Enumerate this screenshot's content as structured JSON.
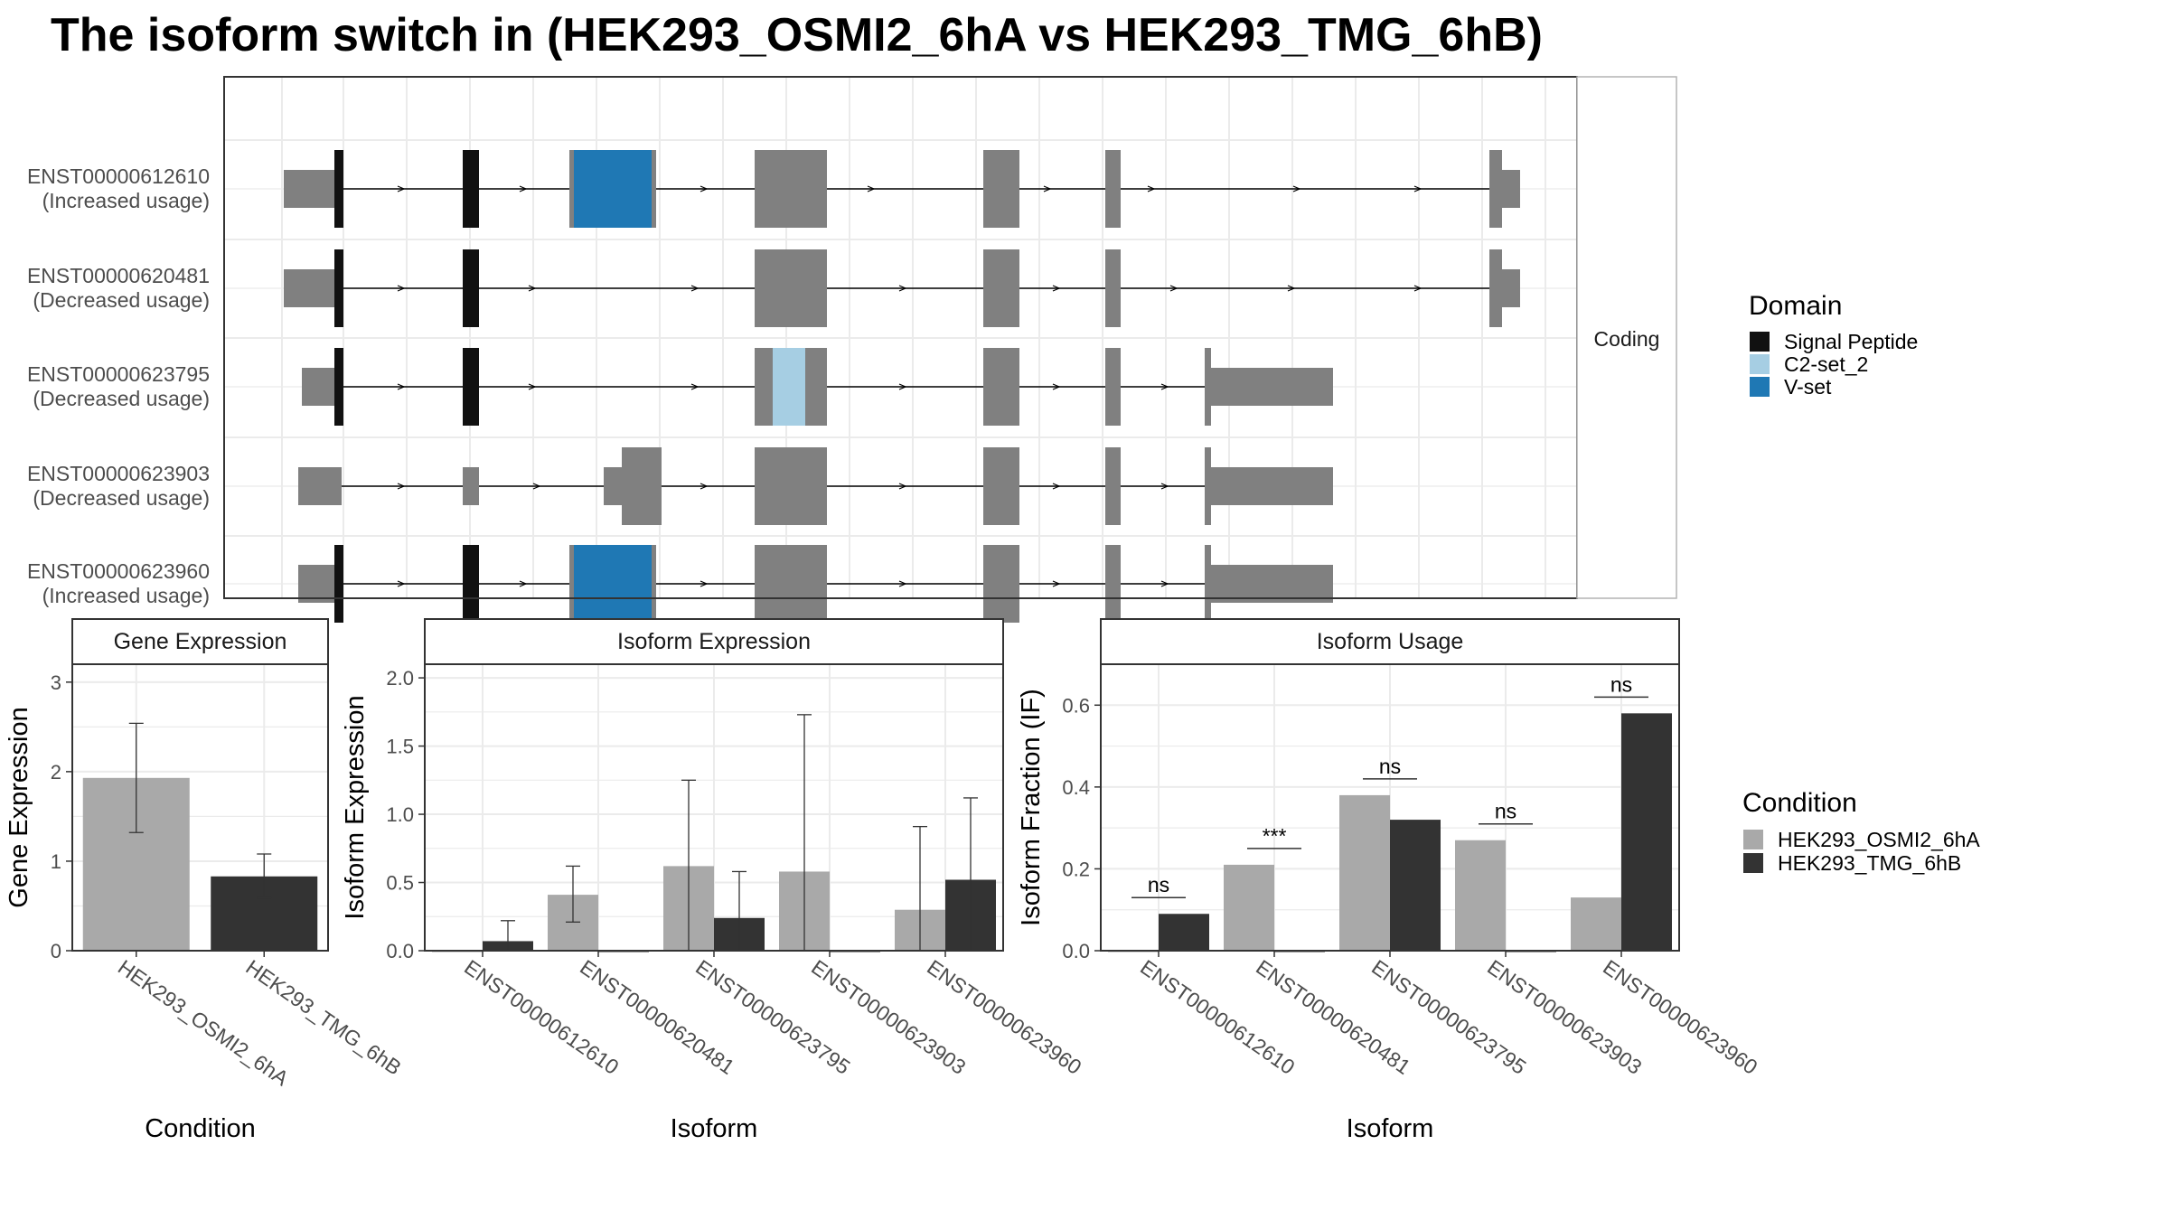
{
  "title": "The isoform switch in  (HEK293_OSMI2_6hA vs HEK293_TMG_6hB)",
  "colors": {
    "exon": "#808080",
    "signal_peptide": "#111111",
    "c2_set_2": "#a6cee3",
    "v_set": "#1f78b4",
    "cond_a": "#a9a9a9",
    "cond_b": "#333333",
    "grid": "#ebebeb",
    "panel_border": "#333333",
    "strip_fill": "#ffffff"
  },
  "chart_data": [
    {
      "type": "gene-structure",
      "title": "The isoform switch in  (HEK293_OSMI2_6hA vs HEK293_TMG_6hB)",
      "strip_label": "Coding",
      "isoforms": [
        {
          "id": "ENST00000612610",
          "status": "(Increased usage)"
        },
        {
          "id": "ENST00000620481",
          "status": "(Decreased usage)"
        },
        {
          "id": "ENST00000623795",
          "status": "(Decreased usage)"
        },
        {
          "id": "ENST00000623903",
          "status": "(Decreased usage)"
        },
        {
          "id": "ENST00000623960",
          "status": "(Increased usage)"
        }
      ],
      "legend": {
        "title": "Domain",
        "items": [
          {
            "label": "Signal Peptide",
            "color": "#111111"
          },
          {
            "label": "C2-set_2",
            "color": "#a6cee3"
          },
          {
            "label": "V-set",
            "color": "#1f78b4"
          }
        ]
      }
    },
    {
      "type": "bar",
      "title": "Gene Expression",
      "xlabel": "Condition",
      "ylabel": "Gene Expression",
      "categories": [
        "HEK293_OSMI2_6hA",
        "HEK293_TMG_6hB"
      ],
      "values": [
        1.93,
        0.83
      ],
      "error_low": [
        1.32,
        0.59
      ],
      "error_high": [
        2.54,
        1.08
      ],
      "ylim": [
        0,
        3.2
      ],
      "yticks": [
        0,
        1,
        2,
        3
      ]
    },
    {
      "type": "bar",
      "title": "Isoform Expression",
      "xlabel": "Isoform",
      "ylabel": "Isoform Expression",
      "categories": [
        "ENST00000612610",
        "ENST00000620481",
        "ENST00000623795",
        "ENST00000623903",
        "ENST00000623960"
      ],
      "series": [
        {
          "name": "HEK293_OSMI2_6hA",
          "values": [
            0.0,
            0.41,
            0.62,
            0.58,
            0.3
          ],
          "error_low": [
            0.0,
            0.21,
            0.0,
            0.0,
            0.0
          ],
          "error_high": [
            0.0,
            0.62,
            1.25,
            1.73,
            0.91
          ]
        },
        {
          "name": "HEK293_TMG_6hB",
          "values": [
            0.07,
            0.0,
            0.24,
            0.0,
            0.52
          ],
          "error_low": [
            0.0,
            0.0,
            0.0,
            0.0,
            0.0
          ],
          "error_high": [
            0.22,
            0.0,
            0.58,
            0.0,
            1.12
          ]
        }
      ],
      "ylim": [
        0,
        2.1
      ],
      "yticks": [
        "0.0",
        "0.5",
        "1.0",
        "1.5",
        "2.0"
      ]
    },
    {
      "type": "bar",
      "title": "Isoform Usage",
      "xlabel": "Isoform",
      "ylabel": "Isoform Fraction (IF)",
      "categories": [
        "ENST00000612610",
        "ENST00000620481",
        "ENST00000623795",
        "ENST00000623903",
        "ENST00000623960"
      ],
      "series": [
        {
          "name": "HEK293_OSMI2_6hA",
          "values": [
            0.0,
            0.21,
            0.38,
            0.27,
            0.13
          ]
        },
        {
          "name": "HEK293_TMG_6hB",
          "values": [
            0.09,
            0.0,
            0.32,
            0.0,
            0.58
          ]
        }
      ],
      "significance": [
        "ns",
        "***",
        "ns",
        "ns",
        "ns"
      ],
      "ylim": [
        0,
        0.7
      ],
      "yticks": [
        "0.0",
        "0.2",
        "0.4",
        "0.6"
      ]
    }
  ],
  "condition_legend": {
    "title": "Condition",
    "items": [
      {
        "label": "HEK293_OSMI2_6hA",
        "color": "#a9a9a9"
      },
      {
        "label": "HEK293_TMG_6hB",
        "color": "#333333"
      }
    ]
  }
}
